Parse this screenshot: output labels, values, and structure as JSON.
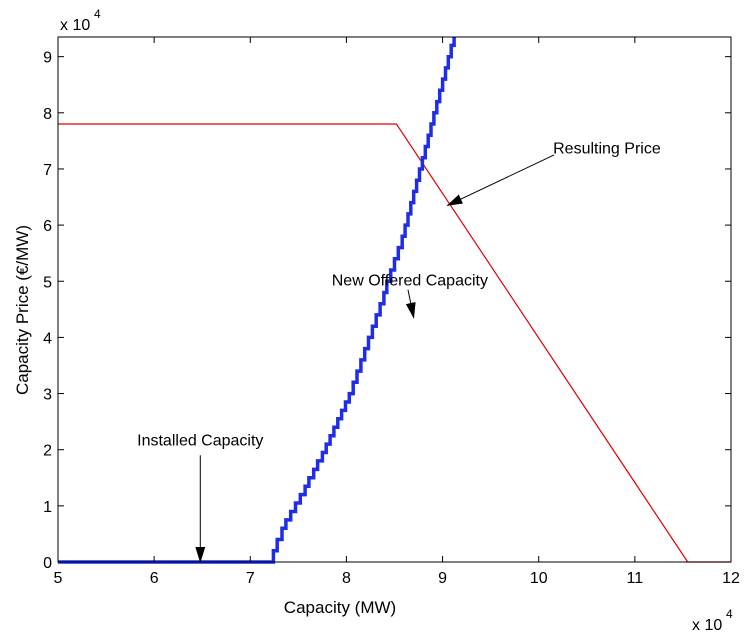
{
  "chart_data": {
    "type": "line",
    "xlabel": "Capacity (MW)",
    "ylabel": "Capacity Price (€/MW)",
    "x_multiplier_label": "x 10",
    "x_multiplier_exp": "4",
    "y_multiplier_label": "x 10",
    "y_multiplier_exp": "4",
    "xlim": [
      50000,
      120000
    ],
    "ylim": [
      0,
      93500
    ],
    "x_ticks": [
      5,
      6,
      7,
      8,
      9,
      10,
      11,
      12
    ],
    "y_ticks": [
      0,
      1,
      2,
      3,
      4,
      5,
      6,
      7,
      8,
      9
    ],
    "grid": false,
    "series": [
      {
        "color": "#e00000",
        "style": "thin",
        "x": [
          50000,
          85200,
          115500,
          120000
        ],
        "y": [
          78000,
          78000,
          0,
          0
        ]
      },
      {
        "color": "#1f2ee6",
        "style": "thick-step",
        "x": [
          50000,
          72400,
          72400,
          72800,
          72800,
          73300,
          73300,
          73700,
          73700,
          74200,
          74200,
          74700,
          74700,
          75200,
          75200,
          75700,
          75700,
          76100,
          76100,
          76600,
          76600,
          77000,
          77000,
          77500,
          77500,
          77900,
          77900,
          78300,
          78300,
          78700,
          78700,
          79100,
          79100,
          79500,
          79500,
          79900,
          79900,
          80300,
          80300,
          80700,
          80700,
          81100,
          81100,
          81500,
          81500,
          81900,
          81900,
          82300,
          82300,
          82700,
          82700,
          83100,
          83100,
          83500,
          83500,
          83900,
          83900,
          84200,
          84200,
          84600,
          84600,
          85000,
          85000,
          85400,
          85400,
          85800,
          85800,
          86100,
          86100,
          86400,
          86400,
          86700,
          86700,
          87000,
          87000,
          87300,
          87300,
          87600,
          87600,
          87900,
          87900,
          88200,
          88200,
          88500,
          88500,
          88800,
          88800,
          89100,
          89100,
          89400,
          89400,
          89700,
          89700,
          90000,
          90000,
          90300,
          90300,
          90600,
          90600,
          90900,
          90900,
          91200,
          91200
        ],
        "y": [
          0,
          0,
          2000,
          2000,
          4000,
          4000,
          6000,
          6000,
          7500,
          7500,
          9000,
          9000,
          10500,
          10500,
          12000,
          12000,
          13500,
          13500,
          15000,
          15000,
          16500,
          16500,
          18000,
          18000,
          19500,
          19500,
          21000,
          21000,
          22500,
          22500,
          24000,
          24000,
          25500,
          25500,
          27000,
          27000,
          28500,
          28500,
          30000,
          30000,
          32000,
          32000,
          34000,
          34000,
          36000,
          36000,
          38000,
          38000,
          40000,
          40000,
          42000,
          42000,
          44000,
          44000,
          46000,
          46000,
          48000,
          48000,
          50000,
          50000,
          52000,
          52000,
          54000,
          54000,
          56000,
          56000,
          58000,
          58000,
          60000,
          60000,
          62000,
          62000,
          64000,
          64000,
          66000,
          66000,
          68000,
          68000,
          70000,
          70000,
          72000,
          72000,
          74000,
          74000,
          76000,
          76000,
          78000,
          78000,
          80000,
          80000,
          82000,
          82000,
          84000,
          84000,
          86000,
          86000,
          88000,
          88000,
          90000,
          90000,
          92000,
          92000,
          93500
        ]
      }
    ],
    "annotations": [
      {
        "text": "Resulting Price",
        "x": 90500,
        "y": 63500,
        "text_x": 101500,
        "text_y": 73500
      },
      {
        "text": "New Offered Capacity",
        "x": 87000,
        "y": 43500,
        "text_x": 76000,
        "text_y": 50000
      },
      {
        "text": "Installed Capacity",
        "x": 64800,
        "y": 0,
        "text_x": 64800,
        "text_y": 21500
      }
    ]
  }
}
